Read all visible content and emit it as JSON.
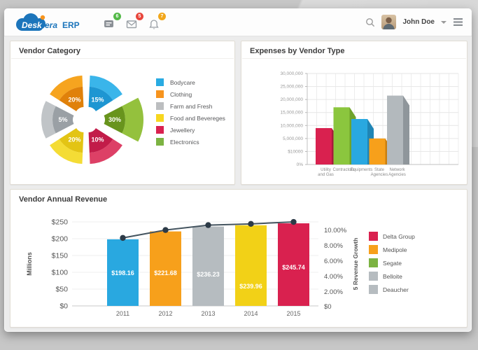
{
  "header": {
    "logo": {
      "part1": "Desk",
      "part2": "era",
      "part3": "ERP"
    },
    "badges": {
      "messages": "6",
      "mail": "5",
      "alerts": "7"
    },
    "badge_colors": {
      "messages": "#54b948",
      "mail": "#e8463c",
      "alerts": "#f2a71b"
    },
    "user_name": "John Doe"
  },
  "panels": {
    "vendor_category_title": "Vendor Category",
    "expenses_title": "Expenses by Vendor Type",
    "revenue_title": "Vendor Annual Revenue"
  },
  "chart_data": [
    {
      "type": "pie",
      "title": "Vendor Category",
      "style": "exploded two-tone donut, six equal 60-degree wedges, Electronics emphasized",
      "segments": [
        {
          "label": "Bodycare",
          "value": 15,
          "pct_label": "15%",
          "color": "#1e96d2",
          "color_light": "#3ab5ea",
          "emphasized": false
        },
        {
          "label": "Electronics",
          "value": 30,
          "pct_label": "30%",
          "color": "#68941d",
          "color_light": "#94c13d",
          "emphasized": true
        },
        {
          "label": "Jewellery",
          "value": 10,
          "pct_label": "10%",
          "color": "#c21c49",
          "color_light": "#dd4066",
          "emphasized": false
        },
        {
          "label": "Food and Bevereges",
          "value": 20,
          "pct_label": "20%",
          "color": "#e3c414",
          "color_light": "#f4dc35",
          "emphasized": false
        },
        {
          "label": "Farm and Fresh",
          "value": 5,
          "pct_label": "5%",
          "color": "#9aa0a5",
          "color_light": "#c0c4c7",
          "emphasized": false
        },
        {
          "label": "Clothing",
          "value": 20,
          "pct_label": "20%",
          "color": "#e0810a",
          "color_light": "#f6a41f",
          "emphasized": false
        }
      ],
      "legend_position": "right",
      "legend": [
        {
          "label": "Bodycare",
          "color": "#29abe2"
        },
        {
          "label": "Clothing",
          "color": "#f7941e"
        },
        {
          "label": "Farm and Fresh",
          "color": "#bcbec0"
        },
        {
          "label": "Food and Bevereges",
          "color": "#f7d71f"
        },
        {
          "label": "Jewellery",
          "color": "#d9214f"
        },
        {
          "label": "Electronics",
          "color": "#7cb342"
        }
      ]
    },
    {
      "type": "bar",
      "title": "Expenses by Vendor Type",
      "style": "3d beveled bars on dense grid",
      "categories": [
        "Utility and Gas",
        "Contractors",
        "Equipments",
        "State Agencies",
        "Network Agencies"
      ],
      "category_lines": [
        [
          "Utility",
          "and Gas"
        ],
        [
          "Contractors"
        ],
        [
          "Equipments"
        ],
        [
          "State",
          "Agencies"
        ],
        [
          "Network",
          "Agencies"
        ]
      ],
      "values": [
        9000000,
        17000000,
        12500000,
        5000000,
        21500000
      ],
      "colors": [
        "#d9214f",
        "#8bc63e",
        "#29a8e0",
        "#f7a01b",
        "#b3b9bd"
      ],
      "side_colors": [
        "#a8183c",
        "#6fa32b",
        "#1f85b5",
        "#c97f10",
        "#8f969b"
      ],
      "y_tick_labels": [
        "30,000,000",
        "25,000,000",
        "20,000,000",
        "15,000,000",
        "10,000,000",
        "5,000,000",
        "$10000",
        "0%"
      ],
      "y_tick_values": [
        30000000,
        25000000,
        20000000,
        15000000,
        10000000,
        5000000,
        10000,
        0
      ],
      "grid": true
    },
    {
      "type": "bar+line",
      "title": "Vendor Annual Revenue",
      "categories": [
        "2011",
        "2012",
        "2013",
        "2014",
        "2015"
      ],
      "bars": {
        "values": [
          198.16,
          221.68,
          236.23,
          239.96,
          245.74
        ],
        "labels": [
          "$198.16",
          "$221.68",
          "$236.23",
          "$239.96",
          "$245.74"
        ],
        "colors": [
          "#29a8e0",
          "#f7a01b",
          "#b6bcc0",
          "#f2d117",
          "#d9214f"
        ]
      },
      "line": {
        "name": "revenue growth",
        "color": "#44545f",
        "point_color": "#2c3a47",
        "values_pct": [
          7.93,
          8.87,
          9.45,
          9.6,
          9.83
        ]
      },
      "left_axis": {
        "title": "Millions",
        "tick_labels": [
          "$250",
          "$200",
          "$150",
          "$100",
          "$50",
          "$0"
        ],
        "min": 0,
        "max": 250
      },
      "right_axis": {
        "title": "5 Revenue Growth",
        "tick_labels": [
          "10.00%",
          "8.00%",
          "6.00%",
          "4.00%",
          "2.00%",
          "$0"
        ]
      },
      "legend_position": "right",
      "legend": [
        {
          "label": "Delta Group",
          "color": "#d9214f"
        },
        {
          "label": "Medipole",
          "color": "#f7a01b"
        },
        {
          "label": "Segate",
          "color": "#7cb342"
        },
        {
          "label": "Belloite",
          "color": "#b6bcc0"
        },
        {
          "label": "Deaucher",
          "color": "#b6bcc0"
        }
      ]
    }
  ]
}
